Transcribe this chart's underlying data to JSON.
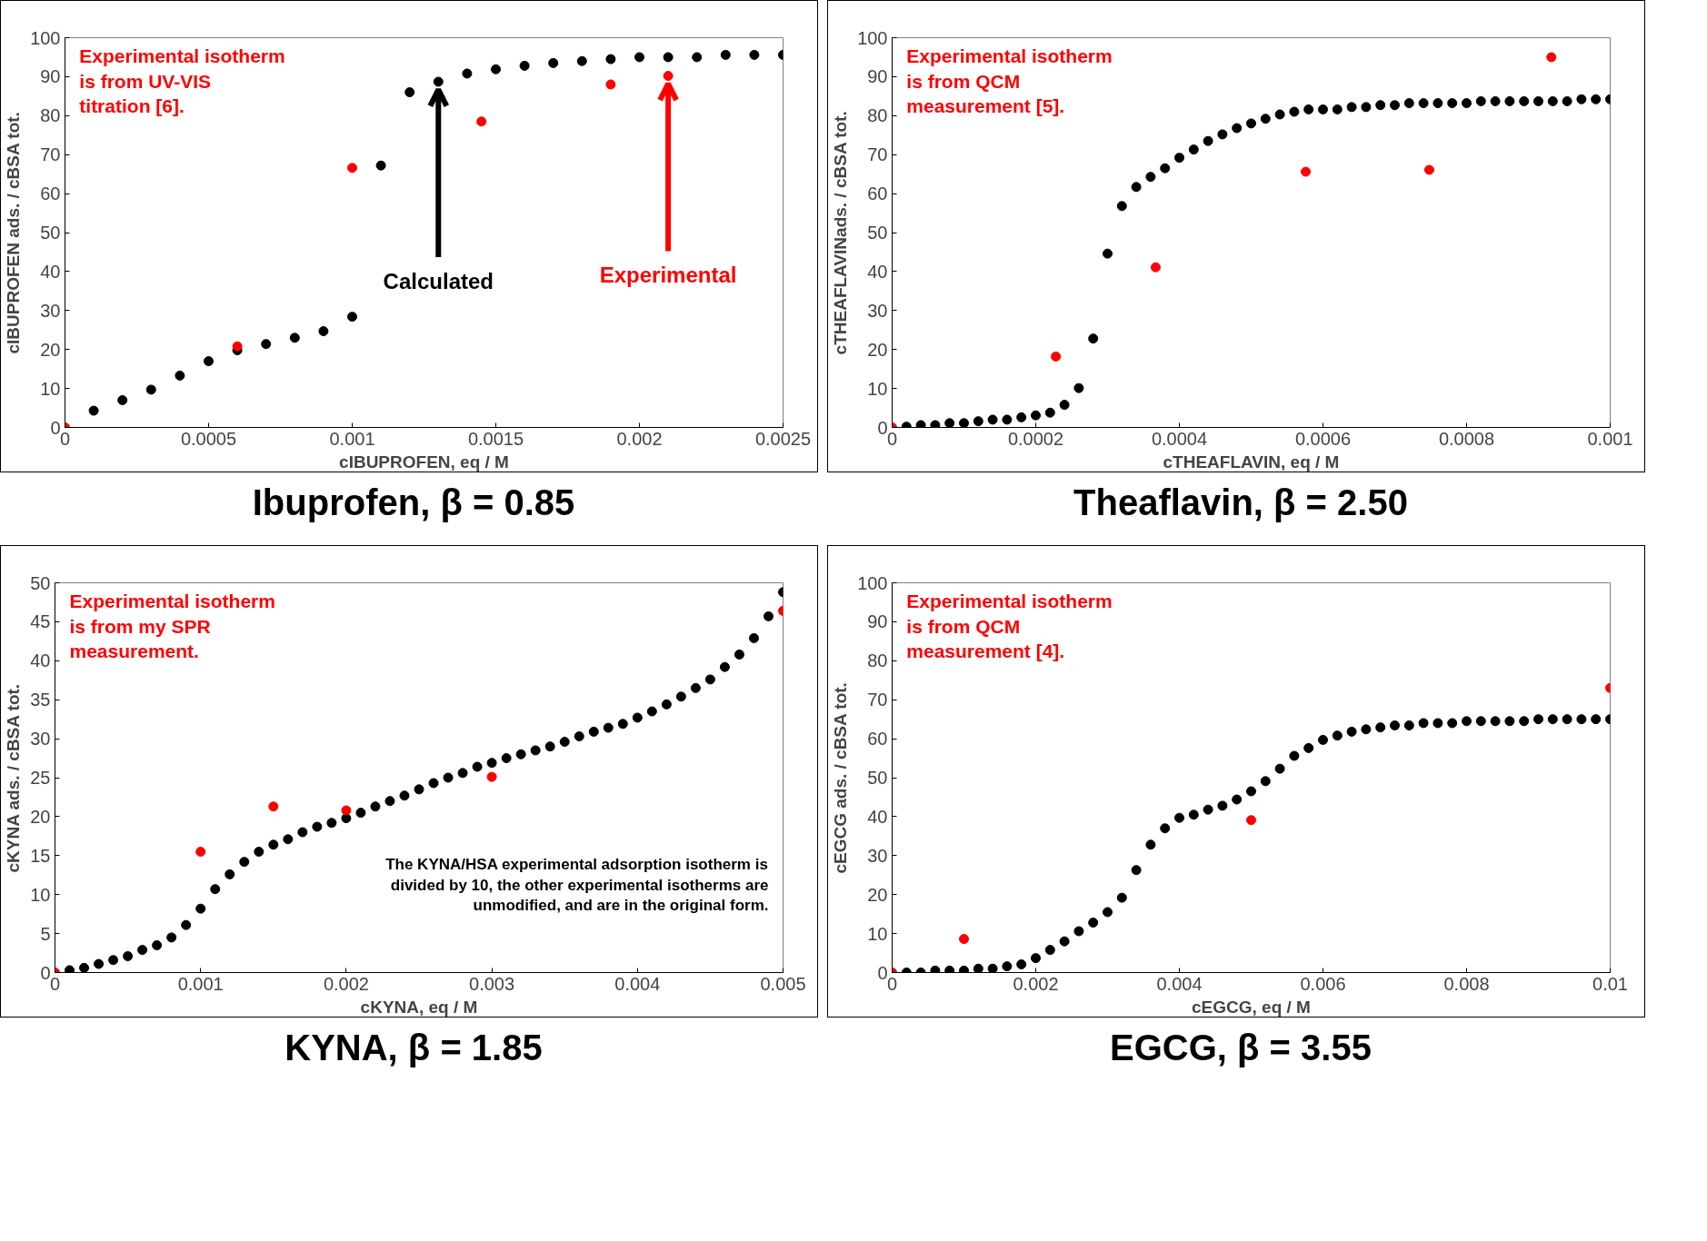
{
  "chart_data": [
    {
      "type": "scatter",
      "title": "Ibuprofen, β = 0.85",
      "xlabel": "cIBUPROFEN, eq / M",
      "ylabel": "cIBUPROFEN ads. / cBSA tot.",
      "xlim": [
        0,
        0.0025
      ],
      "xticks": [
        0,
        0.0005,
        0.001,
        0.0015,
        0.002,
        0.0025
      ],
      "ylim": [
        0,
        100
      ],
      "yticks": [
        0,
        10,
        20,
        30,
        40,
        50,
        60,
        70,
        80,
        90,
        100
      ],
      "marker": "circle",
      "series": [
        {
          "color": "#000000",
          "x": [
            0.0001,
            0.0002,
            0.0003,
            0.0004,
            0.0005,
            0.0006,
            0.0007,
            0.0008,
            0.0009,
            0.001,
            0.0011,
            0.0012,
            0.0013,
            0.0014,
            0.0015,
            0.0016,
            0.0017,
            0.0018,
            0.0019,
            0.002,
            0.0021,
            0.0022,
            0.0023,
            0.0024,
            0.0025
          ],
          "values": [
            4.3,
            7,
            9.7,
            13.3,
            17,
            19.8,
            21.4,
            23,
            24.7,
            28.4,
            67.2,
            86,
            88.7,
            90.8,
            91.9,
            92.8,
            93.5,
            94,
            94.5,
            95,
            95,
            95,
            95.6,
            95.6,
            95.6
          ]
        },
        {
          "color": "#ff0000",
          "x": [
            0,
            0.0006,
            0.001,
            0.00145,
            0.0019,
            0.0021
          ],
          "values": [
            0,
            20.8,
            66.6,
            78.5,
            88,
            90.2
          ]
        }
      ],
      "annotations": [
        "Experimental isotherm is from UV-VIS titration [6].",
        {
          "text": "Calculated",
          "x": 0.0013,
          "y": 88.7
        },
        {
          "text": "Experimental",
          "x": 0.0021,
          "y": 90.2
        }
      ]
    },
    {
      "type": "scatter",
      "title": "Theaflavin, β = 2.50",
      "xlabel": "cTHEAFLAVIN, eq / M",
      "ylabel": "cTHEAFLAVINads. / cBSA tot.",
      "xlim": [
        0,
        0.001
      ],
      "xticks": [
        0,
        0.0002,
        0.0004,
        0.0006,
        0.0008,
        0.001
      ],
      "ylim": [
        0,
        100
      ],
      "yticks": [
        0,
        10,
        20,
        30,
        40,
        50,
        60,
        70,
        80,
        90,
        100
      ],
      "marker": "circle",
      "series": [
        {
          "color": "#000000",
          "x": [
            2e-05,
            4e-05,
            6e-05,
            8e-05,
            0.0001,
            0.00012,
            0.00014,
            0.00016,
            0.00018,
            0.0002,
            0.00022,
            0.00024,
            0.00026,
            0.00028,
            0.0003,
            0.00032,
            0.00034,
            0.00036,
            0.00038,
            0.0004,
            0.00042,
            0.00044,
            0.00046,
            0.00048,
            0.0005,
            0.00052,
            0.00054,
            0.00056,
            0.00058,
            0.0006,
            0.00062,
            0.00064,
            0.00066,
            0.00068,
            0.0007,
            0.00072,
            0.00074,
            0.00076,
            0.00078,
            0.0008,
            0.00082,
            0.00084,
            0.00086,
            0.00088,
            0.0009,
            0.00092,
            0.00094,
            0.00096,
            0.00098,
            0.001
          ],
          "values": [
            0.2,
            0.6,
            0.6,
            1.1,
            1.1,
            1.6,
            2,
            2,
            2.6,
            3.1,
            3.8,
            5.8,
            10.1,
            22.8,
            44.6,
            56.8,
            61.7,
            64.3,
            66.5,
            69.2,
            71.3,
            73.5,
            75.2,
            76.8,
            78,
            79.2,
            80.3,
            81,
            81.6,
            81.6,
            81.6,
            82.2,
            82.2,
            82.7,
            82.7,
            83.2,
            83.2,
            83.2,
            83.2,
            83.2,
            83.7,
            83.7,
            83.7,
            83.7,
            83.7,
            83.7,
            83.7,
            84.2,
            84.2,
            84.2
          ]
        },
        {
          "color": "#ff0000",
          "x": [
            0,
            0.000228,
            0.000367,
            0.000576,
            0.000748,
            0.000918
          ],
          "values": [
            0,
            18.2,
            41.1,
            65.6,
            66.1,
            95
          ]
        }
      ],
      "annotations": [
        "Experimental isotherm is from QCM measurement [5]."
      ]
    },
    {
      "type": "scatter",
      "title": "KYNA, β = 1.85",
      "xlabel": "cKYNA, eq / M",
      "ylabel": "cKYNA ads. / cBSA tot.",
      "xlim": [
        0,
        0.005
      ],
      "xticks": [
        0,
        0.001,
        0.002,
        0.003,
        0.004,
        0.005
      ],
      "ylim": [
        0,
        50
      ],
      "yticks": [
        0,
        5,
        10,
        15,
        20,
        25,
        30,
        35,
        40,
        45,
        50
      ],
      "marker": "circle",
      "series": [
        {
          "color": "#000000",
          "x": [
            0.0001,
            0.0002,
            0.0003,
            0.0004,
            0.0005,
            0.0006,
            0.0007,
            0.0008,
            0.0009,
            0.001,
            0.0011,
            0.0012,
            0.0013,
            0.0014,
            0.0015,
            0.0016,
            0.0017,
            0.0018,
            0.0019,
            0.002,
            0.0021,
            0.0022,
            0.0023,
            0.0024,
            0.0025,
            0.0026,
            0.0027,
            0.0028,
            0.0029,
            0.003,
            0.0031,
            0.0032,
            0.0033,
            0.0034,
            0.0035,
            0.0036,
            0.0037,
            0.0038,
            0.0039,
            0.004,
            0.0041,
            0.0042,
            0.0043,
            0.0044,
            0.0045,
            0.0046,
            0.0047,
            0.0048,
            0.0049,
            0.005
          ],
          "values": [
            0.3,
            0.6,
            1.1,
            1.6,
            2.1,
            2.9,
            3.5,
            4.5,
            6.1,
            8.2,
            10.7,
            12.6,
            14.2,
            15.5,
            16.4,
            17.1,
            18,
            18.7,
            19.2,
            19.8,
            20.5,
            21.3,
            22,
            22.7,
            23.5,
            24.3,
            25,
            25.6,
            26.4,
            26.9,
            27.5,
            28,
            28.5,
            29,
            29.6,
            30.3,
            30.9,
            31.4,
            31.9,
            32.7,
            33.5,
            34.4,
            35.4,
            36.5,
            37.6,
            39.2,
            40.8,
            42.9,
            45.7,
            48.8
          ]
        },
        {
          "color": "#ff0000",
          "x": [
            0,
            0.001,
            0.0015,
            0.002,
            0.003,
            0.005
          ],
          "values": [
            0,
            15.5,
            21.3,
            20.8,
            25.1,
            46.4
          ]
        }
      ],
      "annotations": [
        "Experimental isotherm is from my SPR measurement.",
        "The KYNA/HSA experimental adsorption isotherm is divided by 10, the other experimental isotherms are unmodified, and are in the original form."
      ]
    },
    {
      "type": "scatter",
      "title": "EGCG, β = 3.55",
      "xlabel": "cEGCG, eq / M",
      "ylabel": "cEGCG ads. / cBSA tot.",
      "xlim": [
        0,
        0.01
      ],
      "xticks": [
        0,
        0.002,
        0.004,
        0.006,
        0.008,
        0.01
      ],
      "ylim": [
        0,
        100
      ],
      "yticks": [
        0,
        10,
        20,
        30,
        40,
        50,
        60,
        70,
        80,
        90,
        100
      ],
      "marker": "circle",
      "series": [
        {
          "color": "#000000",
          "x": [
            0.0002,
            0.0004,
            0.0006,
            0.0008,
            0.001,
            0.0012,
            0.0014,
            0.0016,
            0.0018,
            0.002,
            0.0022,
            0.0024,
            0.0026,
            0.0028,
            0.003,
            0.0032,
            0.0034,
            0.0036,
            0.0038,
            0.004,
            0.0042,
            0.0044,
            0.0046,
            0.0048,
            0.005,
            0.0052,
            0.0054,
            0.0056,
            0.0058,
            0.006,
            0.0062,
            0.0064,
            0.0066,
            0.0068,
            0.007,
            0.0072,
            0.0074,
            0.0076,
            0.0078,
            0.008,
            0.0082,
            0.0084,
            0.0086,
            0.0088,
            0.009,
            0.0092,
            0.0094,
            0.0096,
            0.0098,
            0.01
          ],
          "values": [
            0,
            0,
            0.5,
            0.5,
            0.5,
            1,
            1,
            1.6,
            2.1,
            3.7,
            5.8,
            8,
            10.6,
            12.8,
            15.5,
            19.2,
            26.3,
            32.8,
            37,
            39.7,
            40.5,
            41.8,
            42.8,
            44.4,
            46.5,
            49.1,
            52.3,
            55.6,
            57.6,
            59.7,
            60.8,
            61.8,
            62.4,
            62.9,
            63.4,
            63.4,
            64,
            64,
            64,
            64.5,
            64.5,
            64.5,
            64.5,
            64.5,
            65,
            65,
            65,
            65,
            65,
            65
          ]
        },
        {
          "color": "#ff0000",
          "x": [
            0,
            0.001,
            0.005,
            0.01
          ],
          "values": [
            0,
            8.6,
            39.1,
            73
          ]
        }
      ],
      "annotations": [
        "Experimental isotherm is from QCM measurement [4]."
      ]
    }
  ]
}
